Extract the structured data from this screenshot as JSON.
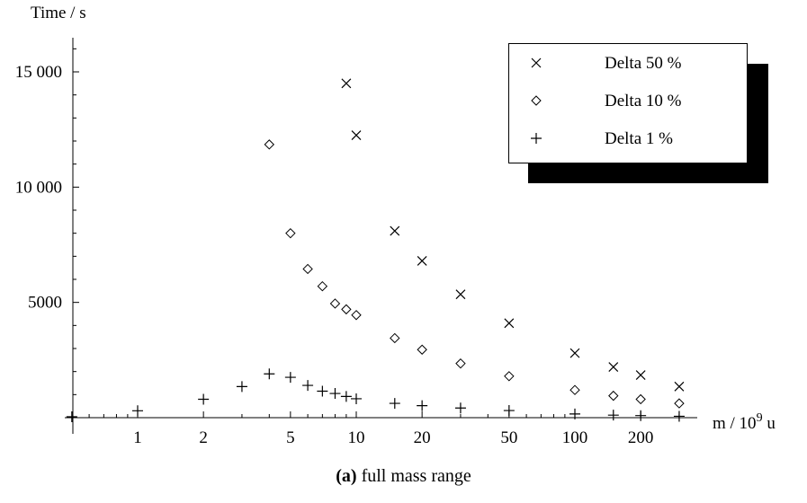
{
  "chart_data": {
    "type": "scatter",
    "x_scale": "log",
    "ylabel": "Time  /  s",
    "xlabel_prefix": "m  /  10",
    "xlabel_exponent": "9",
    "xlabel_suffix": " u",
    "ylim": [
      0,
      16500
    ],
    "yticks": [
      {
        "value": 5000,
        "label": "5000"
      },
      {
        "value": 10000,
        "label": "10 000"
      },
      {
        "value": 15000,
        "label": "15 000"
      }
    ],
    "xticks": [
      {
        "value": 1,
        "label": "1"
      },
      {
        "value": 2,
        "label": "2"
      },
      {
        "value": 5,
        "label": "5"
      },
      {
        "value": 10,
        "label": "10"
      },
      {
        "value": 20,
        "label": "20"
      },
      {
        "value": 50,
        "label": "50"
      },
      {
        "value": 100,
        "label": "100"
      },
      {
        "value": 200,
        "label": "200"
      }
    ],
    "legend_position": "top-right",
    "grid": false,
    "series": [
      {
        "name": "Delta  50 %",
        "marker": "x",
        "points": [
          [
            9,
            14500
          ],
          [
            10,
            12250
          ],
          [
            15,
            8100
          ],
          [
            20,
            6800
          ],
          [
            30,
            5350
          ],
          [
            50,
            4100
          ],
          [
            100,
            2800
          ],
          [
            150,
            2200
          ],
          [
            200,
            1850
          ],
          [
            300,
            1350
          ]
        ]
      },
      {
        "name": "Delta  10 %",
        "marker": "diamond",
        "points": [
          [
            4,
            11850
          ],
          [
            5,
            8000
          ],
          [
            6,
            6450
          ],
          [
            7,
            5700
          ],
          [
            8,
            4950
          ],
          [
            9,
            4700
          ],
          [
            10,
            4450
          ],
          [
            15,
            3450
          ],
          [
            20,
            2950
          ],
          [
            30,
            2350
          ],
          [
            50,
            1800
          ],
          [
            100,
            1200
          ],
          [
            150,
            950
          ],
          [
            200,
            800
          ],
          [
            300,
            620
          ]
        ]
      },
      {
        "name": "Delta  1 %",
        "marker": "plus",
        "points": [
          [
            0.5,
            40
          ],
          [
            1,
            300
          ],
          [
            2,
            800
          ],
          [
            3,
            1350
          ],
          [
            4,
            1900
          ],
          [
            5,
            1750
          ],
          [
            6,
            1400
          ],
          [
            7,
            1150
          ],
          [
            8,
            1050
          ],
          [
            9,
            920
          ],
          [
            10,
            820
          ],
          [
            15,
            620
          ],
          [
            20,
            520
          ],
          [
            30,
            420
          ],
          [
            50,
            310
          ],
          [
            100,
            160
          ],
          [
            150,
            110
          ],
          [
            200,
            90
          ],
          [
            300,
            60
          ]
        ]
      }
    ]
  },
  "caption": {
    "bold": "(a)",
    "text": " full mass range"
  }
}
